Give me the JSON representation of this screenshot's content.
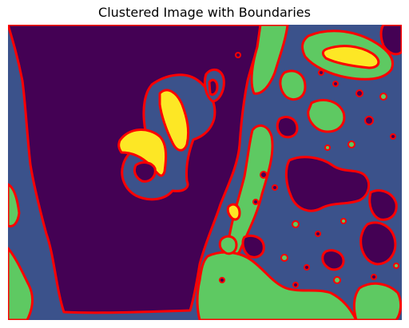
{
  "figure": {
    "title": "Clustered Image with Boundaries"
  },
  "image": {
    "cluster_colors": [
      "#440154",
      "#3b528b",
      "#5ec962",
      "#fde725"
    ],
    "boundary_color": "#ff0000",
    "axes_visible": false
  }
}
